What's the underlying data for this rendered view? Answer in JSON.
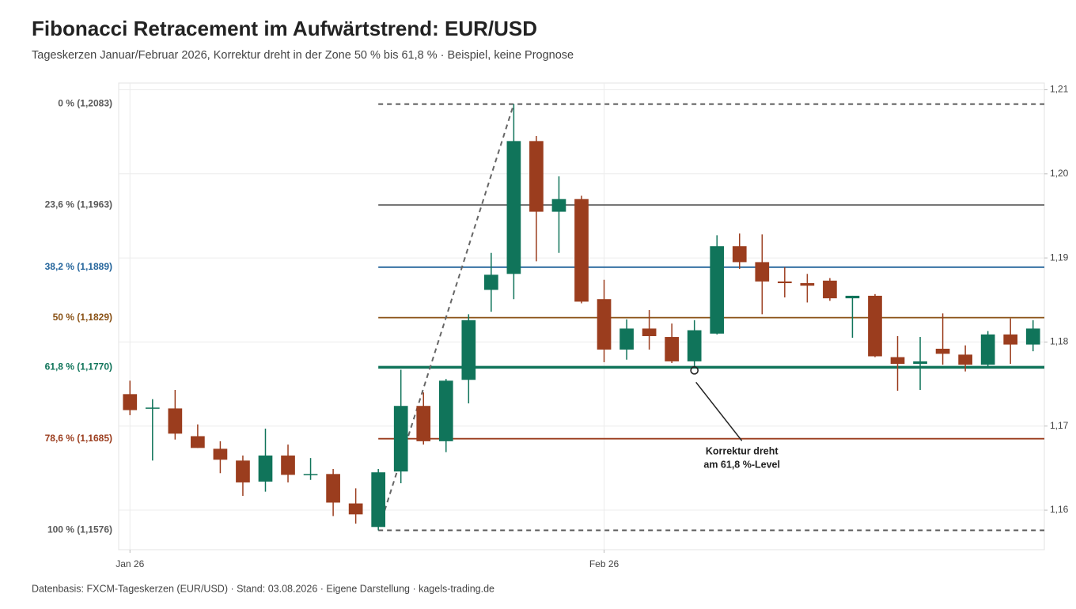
{
  "chart_data": {
    "type": "candlestick",
    "title": "Fibonacci Retracement im Aufwärtstrend: EUR/USD",
    "subtitle": "Tageskerzen Januar/Februar 2026, Korrektur dreht in der Zone 50 % bis 61,8 % · Beispiel, keine Prognose",
    "footer": "Datenbasis: FXCM-Tageskerzen (EUR/USD) · Stand: 03.08.2026 · Eigene Darstellung · kagels-trading.de",
    "up_color": "#10745a",
    "down_color": "#9b3d1e",
    "grid": true,
    "x": [
      0,
      1,
      2,
      3,
      4,
      5,
      6,
      7,
      8,
      9,
      10,
      11,
      12,
      13,
      14,
      15,
      16,
      17,
      18,
      19,
      20,
      21,
      22,
      23,
      24,
      25,
      26,
      27,
      28,
      29,
      30,
      31,
      32,
      33,
      34,
      35,
      36,
      37,
      38,
      39,
      40
    ],
    "open": [
      1.1738,
      1.1721,
      1.1721,
      1.1688,
      1.1673,
      1.1659,
      1.1634,
      1.1665,
      1.1642,
      1.1643,
      1.1608,
      1.158,
      1.1646,
      1.1724,
      1.1682,
      1.1755,
      1.1862,
      1.1881,
      1.2039,
      1.1955,
      1.197,
      1.1851,
      1.1791,
      1.1816,
      1.1806,
      1.1777,
      1.181,
      1.1914,
      1.1895,
      1.1872,
      1.187,
      1.1873,
      1.1852,
      1.1855,
      1.1782,
      1.1774,
      1.1792,
      1.1785,
      1.1773,
      1.1809,
      1.1797
    ],
    "high": [
      1.1754,
      1.1732,
      1.1743,
      1.1702,
      1.1682,
      1.1665,
      1.1697,
      1.1678,
      1.1662,
      1.1649,
      1.1626,
      1.1649,
      1.1767,
      1.174,
      1.1756,
      1.1833,
      1.1906,
      1.2083,
      1.2045,
      1.1997,
      1.1974,
      1.1874,
      1.1827,
      1.1838,
      1.1822,
      1.1826,
      1.1927,
      1.1929,
      1.1928,
      1.1889,
      1.1881,
      1.1876,
      1.1855,
      1.1857,
      1.1807,
      1.1806,
      1.1834,
      1.1796,
      1.1813,
      1.1828,
      1.1826
    ],
    "low": [
      1.1713,
      1.1659,
      1.1684,
      1.1674,
      1.1644,
      1.1617,
      1.1622,
      1.1633,
      1.1636,
      1.1593,
      1.1584,
      1.1576,
      1.1632,
      1.1678,
      1.1669,
      1.1727,
      1.1836,
      1.1851,
      1.1896,
      1.1906,
      1.1846,
      1.1776,
      1.1779,
      1.1791,
      1.1775,
      1.177,
      1.1809,
      1.1887,
      1.1833,
      1.1853,
      1.1847,
      1.1849,
      1.1805,
      1.1782,
      1.1742,
      1.1743,
      1.1773,
      1.1765,
      1.1771,
      1.1774,
      1.1789
    ],
    "close": [
      1.1719,
      1.1722,
      1.1691,
      1.1674,
      1.166,
      1.1633,
      1.1665,
      1.1642,
      1.1643,
      1.1609,
      1.1595,
      1.1645,
      1.1724,
      1.1682,
      1.1754,
      1.1826,
      1.188,
      1.2039,
      1.1955,
      1.197,
      1.1848,
      1.1791,
      1.1816,
      1.1807,
      1.1777,
      1.1814,
      1.1914,
      1.1895,
      1.1872,
      1.187,
      1.1867,
      1.1852,
      1.1855,
      1.1783,
      1.1774,
      1.1777,
      1.1786,
      1.1773,
      1.1809,
      1.1797,
      1.1816
    ],
    "xlim": [
      -0.5,
      40.5
    ],
    "xticks": [
      {
        "value": 0,
        "label": "Jan 26"
      },
      {
        "value": 21,
        "label": "Feb 26"
      }
    ],
    "ylim": [
      1.1553,
      1.2108
    ],
    "yticks": [
      {
        "value": 1.16,
        "label": "1,16"
      },
      {
        "value": 1.17,
        "label": "1,17"
      },
      {
        "value": 1.18,
        "label": "1,18"
      },
      {
        "value": 1.19,
        "label": "1,19"
      },
      {
        "value": 1.2,
        "label": "1,20"
      },
      {
        "value": 1.21,
        "label": "1,21"
      }
    ],
    "fib_levels": [
      {
        "label": "0 % (1,2083)",
        "value": 1.2083,
        "color": "#5a5a5a",
        "dashed": true
      },
      {
        "label": "23,6 % (1,1963)",
        "value": 1.1963,
        "color": "#5a5a5a"
      },
      {
        "label": "38,2 % (1,1889)",
        "value": 1.1889,
        "color": "#23649b"
      },
      {
        "label": "50 % (1,1829)",
        "value": 1.1829,
        "color": "#8a5216"
      },
      {
        "label": "61,8 % (1,1770)",
        "value": 1.177,
        "color": "#10745a",
        "bold": true
      },
      {
        "label": "78,6 % (1,1685)",
        "value": 1.1685,
        "color": "#9b3d1e"
      },
      {
        "label": "100 % (1,1576)",
        "value": 1.1576,
        "color": "#5a5a5a",
        "dashed": true
      }
    ],
    "annotation": {
      "lines": [
        "Korrektur dreht",
        "am 61,8 %-Level"
      ],
      "x": 25,
      "y": 1.177
    }
  }
}
